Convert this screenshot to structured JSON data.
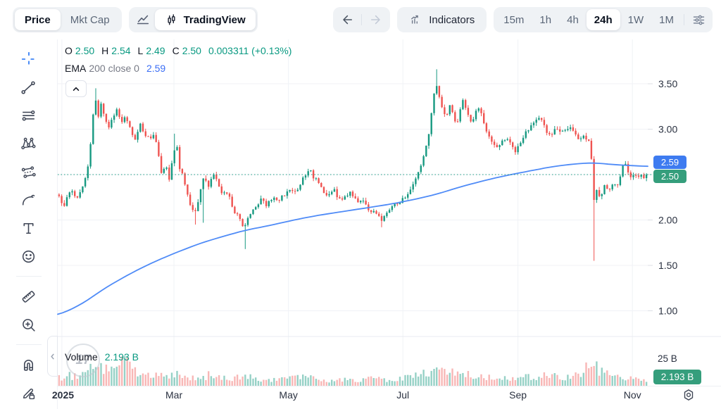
{
  "topbar": {
    "price_tab": "Price",
    "mktcap_tab": "Mkt Cap",
    "tradingview_label": "TradingView",
    "indicators_label": "Indicators",
    "timeframes": [
      {
        "label": "15m",
        "active": false
      },
      {
        "label": "1h",
        "active": false
      },
      {
        "label": "4h",
        "active": false
      },
      {
        "label": "24h",
        "active": true
      },
      {
        "label": "1W",
        "active": false
      },
      {
        "label": "1M",
        "active": false
      }
    ]
  },
  "sidebar": {
    "drawing_tools": [
      "crosshair",
      "trend-line",
      "horizontal-lines",
      "xabcd-pattern",
      "parallel-channel",
      "brush",
      "text",
      "emoji",
      "ruler",
      "zoom-in",
      "magnet",
      "drawing-lock"
    ]
  },
  "legend": {
    "o_label": "O",
    "o_value": "2.50",
    "h_label": "H",
    "h_value": "2.54",
    "l_label": "L",
    "l_value": "2.49",
    "c_label": "C",
    "c_value": "2.50",
    "change": "0.003311 (+0.13%)",
    "ema_label": "EMA",
    "ema_params": "200 close 0",
    "ema_value": "2.59"
  },
  "volume_pane": {
    "label": "Volume",
    "value": "2.193 B",
    "axis_max_label": "25 B",
    "badge": "2.193 B"
  },
  "price_axis": {
    "ema_badge": "2.59",
    "price_badge": "2.50"
  },
  "watermark": {
    "text": "17"
  },
  "colors": {
    "up": "#179981",
    "down": "#ef5350",
    "up_vol": "rgba(23,153,129,0.45)",
    "down_vol": "rgba(239,83,80,0.42)",
    "ema": "#4f8bf7",
    "grid": "#f0f2f6",
    "axis_text": "#2a3140",
    "badge_blue": "#3d7bf0",
    "badge_green": "#359e7c",
    "legend_green": "#089981",
    "legend_blue": "#3b6ef5"
  },
  "chart_data": {
    "type": "candlestick",
    "title": "Price chart, 24h interval, Jan-Nov 2025",
    "current": {
      "open": 2.5,
      "high": 2.54,
      "low": 2.49,
      "close": 2.5,
      "change_abs": "0.003311",
      "change_pct": "+0.13%"
    },
    "ema": {
      "period": 200,
      "source": "close",
      "offset": 0,
      "value": 2.59
    },
    "volume_current_billions": 2.193,
    "price_axis_ticks": [
      3.5,
      3.0,
      2.5,
      2.0,
      1.5,
      1.0
    ],
    "x_labels": [
      "2025",
      "Mar",
      "May",
      "Jul",
      "Sep",
      "Nov"
    ],
    "x_ticks": [
      {
        "label": "2025",
        "t": 0.007,
        "bold": true
      },
      {
        "label": "Mar",
        "t": 0.197
      },
      {
        "label": "May",
        "t": 0.391
      },
      {
        "label": "Jul",
        "t": 0.585
      },
      {
        "label": "Sep",
        "t": 0.78
      },
      {
        "label": "Nov",
        "t": 0.974
      }
    ],
    "ylim": [
      0.72,
      3.99
    ],
    "candle_count": 225,
    "noise_seed": 13,
    "last_close": 2.5,
    "price_path": [
      [
        0.0,
        2.28
      ],
      [
        0.01,
        2.16
      ],
      [
        0.022,
        2.34
      ],
      [
        0.032,
        2.24
      ],
      [
        0.042,
        2.38
      ],
      [
        0.05,
        2.55
      ],
      [
        0.056,
        2.85
      ],
      [
        0.06,
        3.18
      ],
      [
        0.064,
        3.35
      ],
      [
        0.068,
        3.12
      ],
      [
        0.073,
        3.27
      ],
      [
        0.078,
        3.16
      ],
      [
        0.085,
        3.0
      ],
      [
        0.092,
        3.12
      ],
      [
        0.1,
        3.22
      ],
      [
        0.108,
        3.08
      ],
      [
        0.115,
        3.15
      ],
      [
        0.123,
        3.0
      ],
      [
        0.131,
        2.9
      ],
      [
        0.14,
        3.04
      ],
      [
        0.148,
        2.96
      ],
      [
        0.156,
        2.86
      ],
      [
        0.163,
        2.94
      ],
      [
        0.171,
        2.72
      ],
      [
        0.176,
        2.5
      ],
      [
        0.182,
        2.62
      ],
      [
        0.189,
        2.45
      ],
      [
        0.196,
        2.72
      ],
      [
        0.201,
        2.88
      ],
      [
        0.206,
        2.58
      ],
      [
        0.212,
        2.47
      ],
      [
        0.219,
        2.33
      ],
      [
        0.225,
        2.13
      ],
      [
        0.232,
        2.08
      ],
      [
        0.24,
        2.27
      ],
      [
        0.248,
        2.46
      ],
      [
        0.256,
        2.38
      ],
      [
        0.263,
        2.5
      ],
      [
        0.271,
        2.42
      ],
      [
        0.28,
        2.29
      ],
      [
        0.29,
        2.26
      ],
      [
        0.299,
        2.11
      ],
      [
        0.308,
        2.03
      ],
      [
        0.316,
        1.92
      ],
      [
        0.324,
        2.04
      ],
      [
        0.334,
        2.14
      ],
      [
        0.344,
        2.22
      ],
      [
        0.354,
        2.17
      ],
      [
        0.364,
        2.25
      ],
      [
        0.374,
        2.19
      ],
      [
        0.383,
        2.27
      ],
      [
        0.391,
        2.33
      ],
      [
        0.4,
        2.29
      ],
      [
        0.41,
        2.37
      ],
      [
        0.42,
        2.5
      ],
      [
        0.426,
        2.56
      ],
      [
        0.433,
        2.47
      ],
      [
        0.441,
        2.44
      ],
      [
        0.45,
        2.33
      ],
      [
        0.459,
        2.26
      ],
      [
        0.468,
        2.33
      ],
      [
        0.477,
        2.24
      ],
      [
        0.487,
        2.26
      ],
      [
        0.497,
        2.31
      ],
      [
        0.507,
        2.21
      ],
      [
        0.517,
        2.19
      ],
      [
        0.527,
        2.13
      ],
      [
        0.538,
        2.08
      ],
      [
        0.548,
        1.99
      ],
      [
        0.556,
        2.05
      ],
      [
        0.565,
        2.12
      ],
      [
        0.574,
        2.18
      ],
      [
        0.585,
        2.24
      ],
      [
        0.597,
        2.31
      ],
      [
        0.606,
        2.42
      ],
      [
        0.614,
        2.55
      ],
      [
        0.622,
        2.72
      ],
      [
        0.63,
        3.0
      ],
      [
        0.636,
        3.3
      ],
      [
        0.641,
        3.52
      ],
      [
        0.646,
        3.4
      ],
      [
        0.652,
        3.22
      ],
      [
        0.658,
        3.12
      ],
      [
        0.664,
        3.28
      ],
      [
        0.67,
        3.18
      ],
      [
        0.676,
        3.05
      ],
      [
        0.682,
        3.22
      ],
      [
        0.688,
        3.33
      ],
      [
        0.694,
        3.18
      ],
      [
        0.701,
        3.08
      ],
      [
        0.708,
        3.18
      ],
      [
        0.715,
        3.23
      ],
      [
        0.722,
        3.05
      ],
      [
        0.73,
        2.95
      ],
      [
        0.738,
        2.86
      ],
      [
        0.746,
        2.79
      ],
      [
        0.754,
        2.88
      ],
      [
        0.762,
        2.92
      ],
      [
        0.77,
        2.8
      ],
      [
        0.777,
        2.76
      ],
      [
        0.785,
        2.88
      ],
      [
        0.793,
        2.97
      ],
      [
        0.801,
        3.02
      ],
      [
        0.809,
        3.08
      ],
      [
        0.817,
        3.14
      ],
      [
        0.824,
        3.05
      ],
      [
        0.831,
        2.95
      ],
      [
        0.838,
        2.97
      ],
      [
        0.845,
        3.02
      ],
      [
        0.852,
        2.95
      ],
      [
        0.86,
        2.98
      ],
      [
        0.868,
        3.0
      ],
      [
        0.875,
        2.95
      ],
      [
        0.882,
        2.88
      ],
      [
        0.889,
        2.92
      ],
      [
        0.897,
        2.88
      ],
      [
        0.903,
        2.85
      ],
      [
        0.908,
        2.2
      ],
      [
        0.914,
        2.32
      ],
      [
        0.92,
        2.26
      ],
      [
        0.927,
        2.38
      ],
      [
        0.934,
        2.3
      ],
      [
        0.941,
        2.42
      ],
      [
        0.948,
        2.38
      ],
      [
        0.954,
        2.52
      ],
      [
        0.96,
        2.62
      ],
      [
        0.966,
        2.55
      ],
      [
        0.972,
        2.45
      ],
      [
        0.978,
        2.5
      ],
      [
        0.985,
        2.46
      ],
      [
        1.0,
        2.5
      ]
    ],
    "spikes": [
      {
        "t": 0.064,
        "high": 3.45
      },
      {
        "t": 0.196,
        "high": 2.95
      },
      {
        "t": 0.232,
        "low": 1.95
      },
      {
        "t": 0.247,
        "low": 1.97
      },
      {
        "t": 0.316,
        "low": 1.68
      },
      {
        "t": 0.548,
        "low": 1.92
      },
      {
        "t": 0.641,
        "high": 3.66
      },
      {
        "t": 0.908,
        "low": 1.55
      }
    ],
    "ema_path": [
      [
        0.0,
        0.95
      ],
      [
        0.04,
        1.07
      ],
      [
        0.08,
        1.25
      ],
      [
        0.12,
        1.4
      ],
      [
        0.16,
        1.53
      ],
      [
        0.2,
        1.64
      ],
      [
        0.24,
        1.74
      ],
      [
        0.28,
        1.82
      ],
      [
        0.32,
        1.89
      ],
      [
        0.36,
        1.94
      ],
      [
        0.4,
        2.0
      ],
      [
        0.44,
        2.05
      ],
      [
        0.48,
        2.09
      ],
      [
        0.52,
        2.13
      ],
      [
        0.56,
        2.17
      ],
      [
        0.6,
        2.22
      ],
      [
        0.64,
        2.28
      ],
      [
        0.68,
        2.36
      ],
      [
        0.72,
        2.43
      ],
      [
        0.76,
        2.49
      ],
      [
        0.8,
        2.54
      ],
      [
        0.84,
        2.59
      ],
      [
        0.88,
        2.62
      ],
      [
        0.91,
        2.63
      ],
      [
        0.94,
        2.61
      ],
      [
        0.97,
        2.6
      ],
      [
        1.0,
        2.59
      ]
    ],
    "volume_axis_max": 25,
    "volume_path": [
      [
        0.0,
        5
      ],
      [
        0.02,
        7
      ],
      [
        0.04,
        6
      ],
      [
        0.055,
        11
      ],
      [
        0.065,
        14
      ],
      [
        0.08,
        10
      ],
      [
        0.095,
        13
      ],
      [
        0.108,
        16
      ],
      [
        0.115,
        24
      ],
      [
        0.125,
        13
      ],
      [
        0.14,
        10
      ],
      [
        0.155,
        8
      ],
      [
        0.17,
        7
      ],
      [
        0.185,
        6
      ],
      [
        0.197,
        9
      ],
      [
        0.21,
        6
      ],
      [
        0.23,
        5
      ],
      [
        0.25,
        6
      ],
      [
        0.26,
        8
      ],
      [
        0.28,
        5
      ],
      [
        0.3,
        6
      ],
      [
        0.316,
        9
      ],
      [
        0.34,
        5
      ],
      [
        0.37,
        4.5
      ],
      [
        0.39,
        5
      ],
      [
        0.42,
        6
      ],
      [
        0.45,
        4
      ],
      [
        0.48,
        4
      ],
      [
        0.51,
        4
      ],
      [
        0.54,
        5
      ],
      [
        0.57,
        4.5
      ],
      [
        0.6,
        6
      ],
      [
        0.62,
        9
      ],
      [
        0.64,
        13
      ],
      [
        0.66,
        10
      ],
      [
        0.68,
        8
      ],
      [
        0.7,
        9
      ],
      [
        0.72,
        6
      ],
      [
        0.75,
        5
      ],
      [
        0.78,
        5
      ],
      [
        0.8,
        6
      ],
      [
        0.83,
        7
      ],
      [
        0.86,
        5
      ],
      [
        0.88,
        8
      ],
      [
        0.908,
        15
      ],
      [
        0.925,
        9
      ],
      [
        0.945,
        6
      ],
      [
        0.97,
        5
      ],
      [
        1.0,
        4
      ]
    ]
  }
}
